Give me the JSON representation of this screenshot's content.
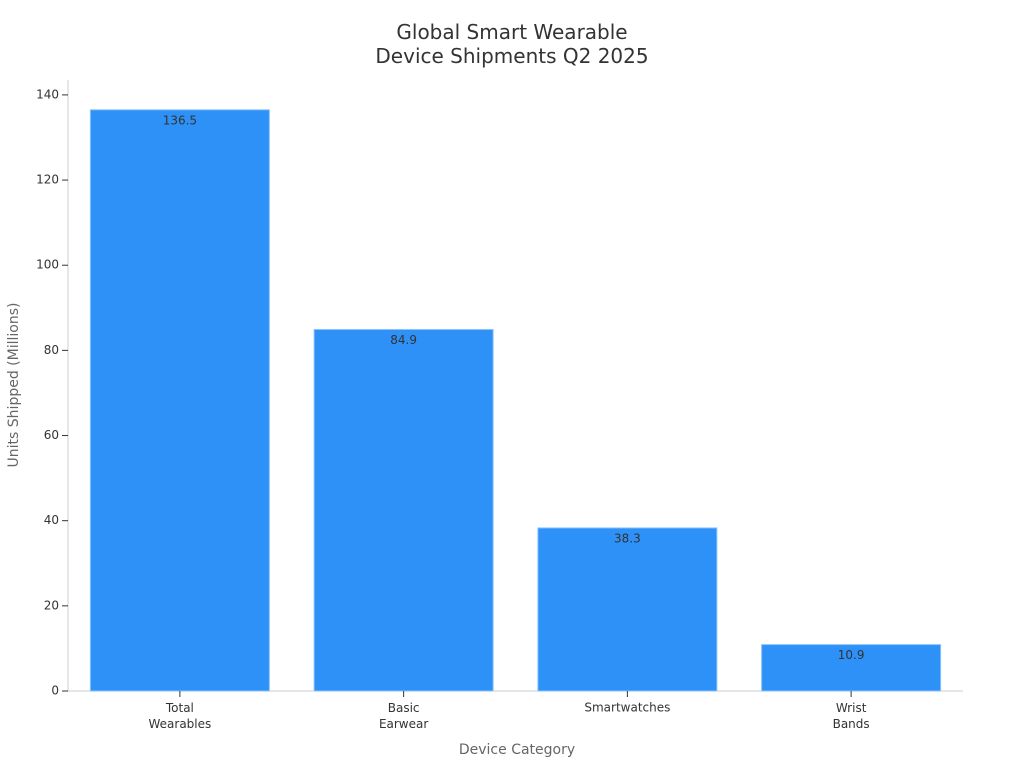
{
  "chart_data": {
    "type": "bar",
    "title": "Global Smart Wearable\nDevice Shipments Q2 2025",
    "x_label": "Device Category",
    "y_label": "Units Shipped (Millions)",
    "categories": [
      "Total\nWearables",
      "Basic\nEarwear",
      "Smartwatches",
      "Wrist\nBands"
    ],
    "values": [
      136.5,
      84.9,
      38.3,
      10.9
    ],
    "color": "#2e91f8",
    "ylim": [
      0,
      143.5
    ],
    "yticks": [
      0,
      20,
      40,
      60,
      80,
      100,
      120,
      140
    ],
    "grid": false
  }
}
